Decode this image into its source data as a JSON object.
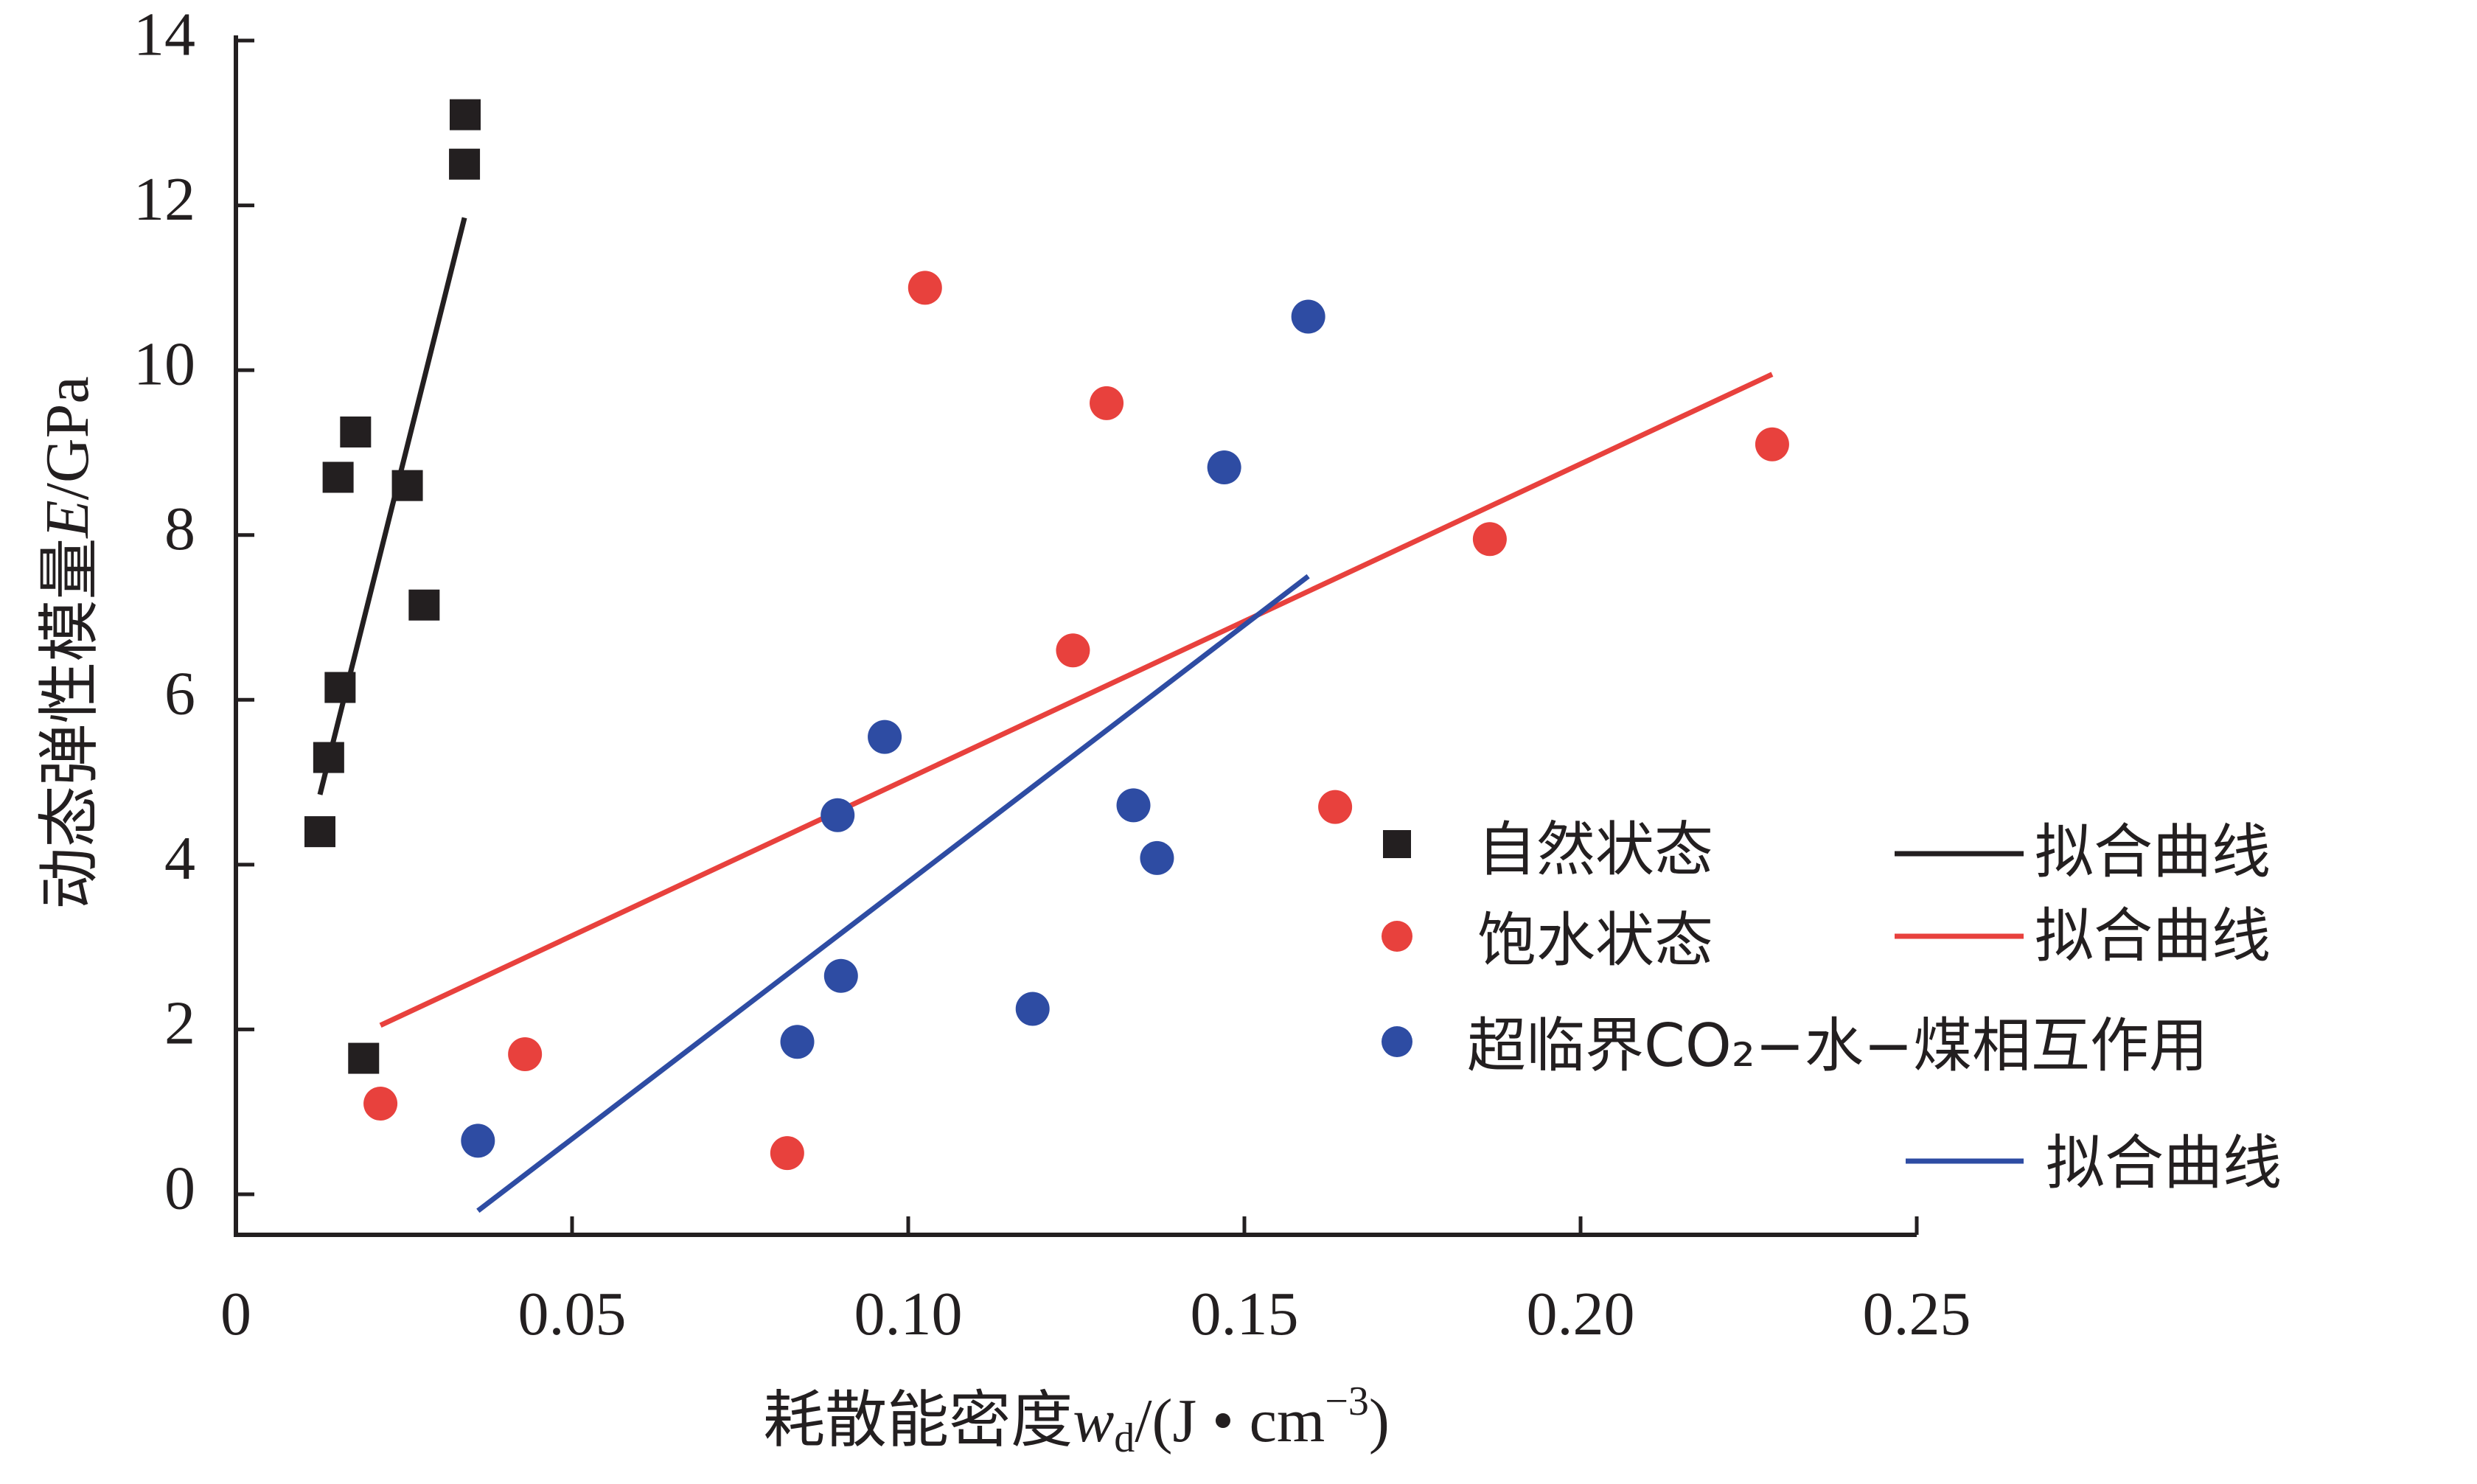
{
  "chart_data": {
    "type": "scatter",
    "xlabel": {
      "main": "耗散能密度",
      "var": "w",
      "sub": "d",
      "unit_pre": "/(J • cm",
      "unit_sup": "−3",
      "unit_post": ")"
    },
    "ylabel": {
      "main": "动态弹性模量",
      "var": "E",
      "unit": "/GPa"
    },
    "xlim": [
      0,
      0.25
    ],
    "ylim": [
      0,
      14
    ],
    "x_ticks": [
      0,
      0.05,
      0.1,
      0.15,
      0.2,
      0.25
    ],
    "x_tick_labels": [
      "0",
      "0.05",
      "0.10",
      "0.15",
      "0.20",
      "0.25"
    ],
    "y_ticks": [
      0,
      2,
      4,
      6,
      8,
      10,
      12,
      14
    ],
    "y_tick_labels": [
      "0",
      "2",
      "4",
      "6",
      "8",
      "10",
      "12",
      "14"
    ],
    "grid": false,
    "legend_position": "lower-right",
    "series": [
      {
        "name": "自然状态",
        "marker": "square",
        "color": "#231f20",
        "points": [
          [
            0.0125,
            4.4
          ],
          [
            0.0138,
            5.3
          ],
          [
            0.0155,
            6.15
          ],
          [
            0.0152,
            8.7
          ],
          [
            0.0178,
            9.25
          ],
          [
            0.0255,
            8.6
          ],
          [
            0.028,
            7.15
          ],
          [
            0.019,
            1.65
          ],
          [
            0.034,
            12.5
          ],
          [
            0.0341,
            13.1
          ]
        ],
        "fit_name": "拟合曲线",
        "fit": [
          [
            0.0125,
            4.85
          ],
          [
            0.034,
            11.85
          ]
        ]
      },
      {
        "name": "饱水状态",
        "marker": "circle",
        "color": "#e8413d",
        "points": [
          [
            0.0215,
            1.1
          ],
          [
            0.043,
            1.7
          ],
          [
            0.082,
            0.5
          ],
          [
            0.1025,
            11.0
          ],
          [
            0.1245,
            6.6
          ],
          [
            0.1295,
            9.6
          ],
          [
            0.1635,
            4.7
          ],
          [
            0.1865,
            7.95
          ],
          [
            0.2285,
            9.1
          ]
        ],
        "fit_name": "拟合曲线",
        "fit": [
          [
            0.0215,
            2.05
          ],
          [
            0.2285,
            9.95
          ]
        ]
      },
      {
        "name": "超临界CO₂−水−煤相互作用",
        "marker": "circle",
        "color": "#2e4ca3",
        "points": [
          [
            0.036,
            0.65
          ],
          [
            0.0835,
            1.85
          ],
          [
            0.0895,
            4.6
          ],
          [
            0.09,
            2.65
          ],
          [
            0.0965,
            5.55
          ],
          [
            0.1185,
            2.25
          ],
          [
            0.1335,
            4.72
          ],
          [
            0.137,
            4.08
          ],
          [
            0.147,
            8.82
          ],
          [
            0.1595,
            10.65
          ]
        ],
        "fit_name": "拟合曲线",
        "fit": [
          [
            0.036,
            -0.2
          ],
          [
            0.1595,
            7.5
          ]
        ]
      }
    ]
  }
}
